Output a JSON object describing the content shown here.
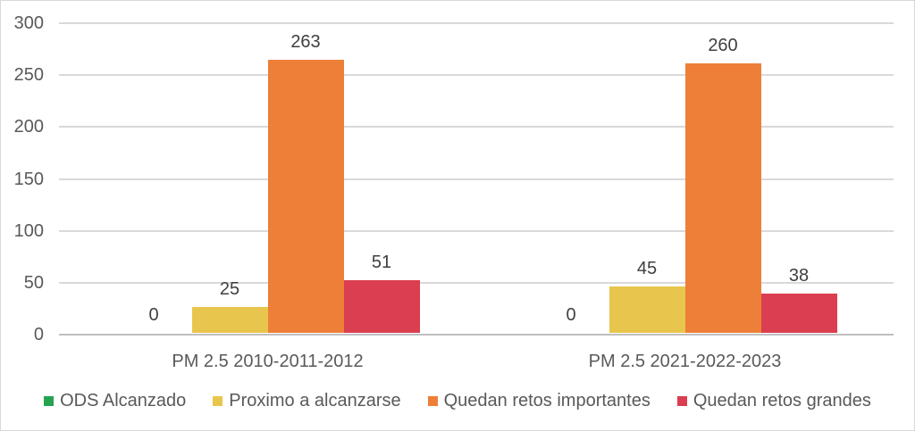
{
  "chart_data": {
    "type": "bar",
    "title": "",
    "xlabel": "",
    "ylabel": "",
    "categories": [
      "PM 2.5 2010-2011-2012",
      "PM 2.5 2021-2022-2023"
    ],
    "series": [
      {
        "name": "ODS Alcanzado",
        "color": "#26A351",
        "values": [
          0,
          0
        ]
      },
      {
        "name": "Proximo a alcanzarse",
        "color": "#E8C64D",
        "values": [
          25,
          45
        ]
      },
      {
        "name": "Quedan retos importantes",
        "color": "#EE7F38",
        "values": [
          263,
          260
        ]
      },
      {
        "name": "Quedan retos grandes",
        "color": "#DB3E50",
        "values": [
          51,
          38
        ]
      }
    ],
    "ylim": [
      0,
      300
    ],
    "yticks": [
      0,
      50,
      100,
      150,
      200,
      250,
      300
    ],
    "grid": true,
    "data_labels": true,
    "legend_position": "bottom"
  },
  "colors": {
    "background": "#FFFFFF",
    "border": "#D9D9D9",
    "gridline": "#D9D9D9",
    "axis_line": "#BFBFBF",
    "tick_text": "#595959",
    "category_text": "#595959",
    "legend_text": "#595959",
    "data_label_text": "#3F3F3F"
  }
}
